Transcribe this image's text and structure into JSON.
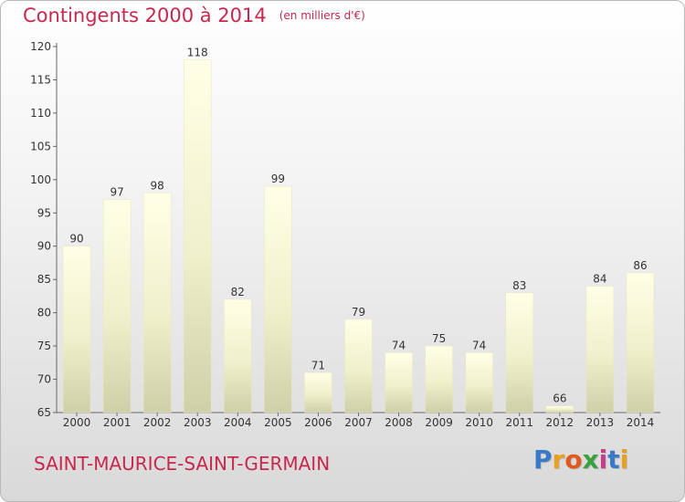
{
  "title": "Contingents 2000 à 2014",
  "unit": "(en milliers d'€)",
  "commune": "SAINT-MAURICE-SAINT-GERMAIN",
  "logo": {
    "text": "Proxiti",
    "letters": [
      "P",
      "r",
      "o",
      "x",
      "i",
      "t",
      "i"
    ],
    "colors": [
      "#3a78c8",
      "#e8a020",
      "#e05a1e",
      "#3aa040",
      "#c83c8c",
      "#3a78c8",
      "#e8a020"
    ]
  },
  "colors": {
    "title": "#c8284e",
    "bar_light": "#ffffe0",
    "bar_dark": "#c8c8a0",
    "axis": "#555555"
  },
  "chart_data": {
    "type": "bar",
    "categories": [
      "2000",
      "2001",
      "2002",
      "2003",
      "2004",
      "2005",
      "2006",
      "2007",
      "2008",
      "2009",
      "2010",
      "2011",
      "2012",
      "2013",
      "2014"
    ],
    "values": [
      90,
      97,
      98,
      118,
      82,
      99,
      71,
      79,
      74,
      75,
      74,
      83,
      66,
      84,
      86
    ],
    "ylim": [
      65,
      120
    ],
    "yticks": [
      65,
      70,
      75,
      80,
      85,
      90,
      95,
      100,
      105,
      110,
      115,
      120
    ],
    "data_labels": true,
    "grid": false
  }
}
